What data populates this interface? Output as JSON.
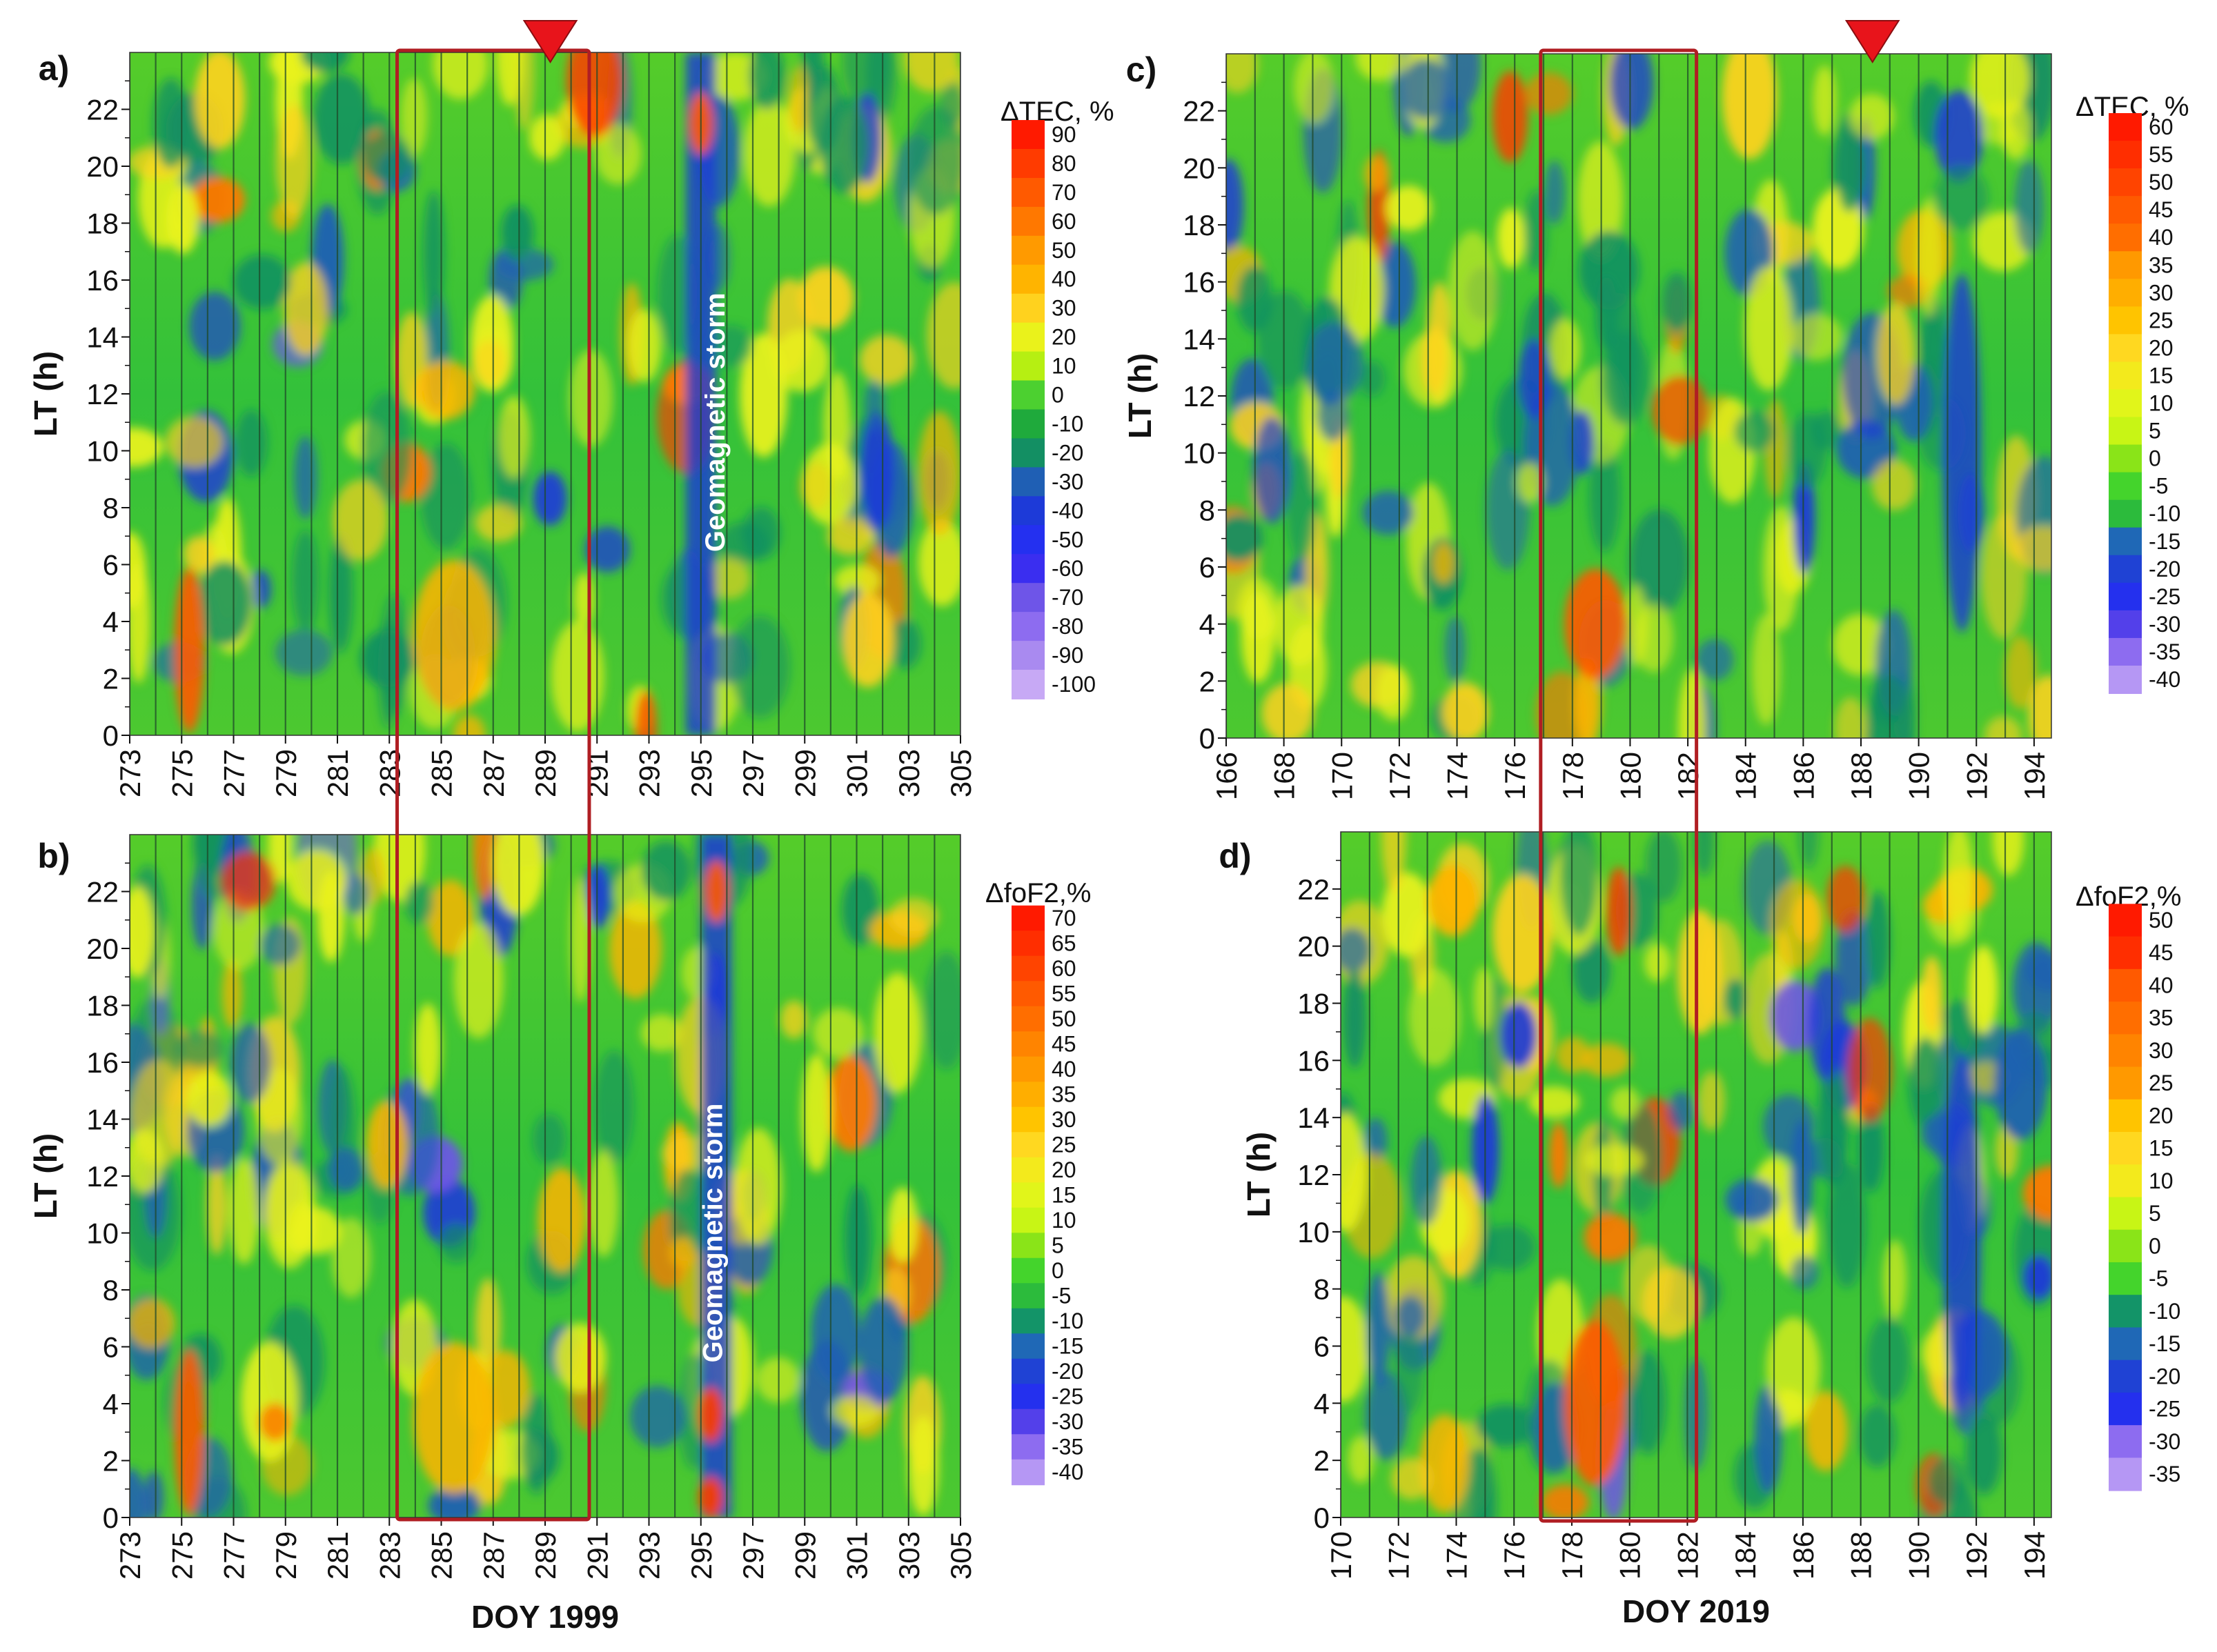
{
  "chart_data": [
    {
      "type": "heatmap",
      "panel_label": "a)",
      "quantity": "ΔTEC",
      "colorbar_title": "ΔTEC, %",
      "colorbar_levels": [
        "90",
        "80",
        "70",
        "60",
        "50",
        "40",
        "30",
        "20",
        "10",
        "0",
        "-10",
        "-20",
        "-30",
        "-40",
        "-50",
        "-60",
        "-70",
        "-80",
        "-90",
        "-100"
      ],
      "xlabel": "",
      "ylabel": "LT (h)",
      "xlim": [
        273,
        305
      ],
      "ylim": [
        0,
        24
      ],
      "x_ticks": [
        "273",
        "275",
        "277",
        "279",
        "281",
        "283",
        "285",
        "287",
        "289",
        "291",
        "293",
        "295",
        "297",
        "299",
        "301",
        "303",
        "305"
      ],
      "y_ticks": [
        "0",
        "2",
        "4",
        "6",
        "8",
        "10",
        "12",
        "14",
        "16",
        "18",
        "20",
        "22"
      ],
      "annotation": "Geomagnetic storm",
      "storm_doy": 295,
      "highlight_doy_range": [
        283.3,
        290.7
      ],
      "marker_doy": 289.2
    },
    {
      "type": "heatmap",
      "panel_label": "b)",
      "quantity": "ΔfoF2",
      "colorbar_title": "ΔfoF2,%",
      "colorbar_levels": [
        "70",
        "65",
        "60",
        "55",
        "50",
        "45",
        "40",
        "35",
        "30",
        "25",
        "20",
        "15",
        "10",
        "5",
        "0",
        "-5",
        "-10",
        "-15",
        "-20",
        "-25",
        "-30",
        "-35",
        "-40"
      ],
      "xlabel": "DOY 1999",
      "ylabel": "LT (h)",
      "xlim": [
        273,
        305
      ],
      "ylim": [
        0,
        24
      ],
      "x_ticks": [
        "273",
        "275",
        "277",
        "279",
        "281",
        "283",
        "285",
        "287",
        "289",
        "291",
        "293",
        "295",
        "297",
        "299",
        "301",
        "303",
        "305"
      ],
      "y_ticks": [
        "0",
        "2",
        "4",
        "6",
        "8",
        "10",
        "12",
        "14",
        "16",
        "18",
        "20",
        "22"
      ],
      "annotation": "Geomagnetic storm",
      "storm_doy": 295.6,
      "highlight_doy_range": [
        283.3,
        290.7
      ]
    },
    {
      "type": "heatmap",
      "panel_label": "c)",
      "quantity": "ΔTEC",
      "colorbar_title": "ΔTEC, %",
      "colorbar_levels": [
        "60",
        "55",
        "50",
        "45",
        "40",
        "35",
        "30",
        "25",
        "20",
        "15",
        "10",
        "5",
        "0",
        "-5",
        "-10",
        "-15",
        "-20",
        "-25",
        "-30",
        "-35",
        "-40"
      ],
      "xlabel": "",
      "ylabel": "LT (h)",
      "xlim": [
        166,
        194.6
      ],
      "ylim": [
        0,
        24
      ],
      "x_ticks": [
        "166",
        "168",
        "170",
        "172",
        "174",
        "176",
        "178",
        "180",
        "182",
        "184",
        "186",
        "188",
        "190",
        "192",
        "194"
      ],
      "y_ticks": [
        "0",
        "2",
        "4",
        "6",
        "8",
        "10",
        "12",
        "14",
        "16",
        "18",
        "20",
        "22"
      ],
      "highlight_doy_range": [
        176.9,
        182.3
      ],
      "marker_doy": 188.4
    },
    {
      "type": "heatmap",
      "panel_label": "d)",
      "quantity": "ΔfoF2",
      "colorbar_title": "ΔfoF2,%",
      "colorbar_levels": [
        "50",
        "45",
        "40",
        "35",
        "30",
        "25",
        "20",
        "15",
        "10",
        "5",
        "0",
        "-5",
        "-10",
        "-15",
        "-20",
        "-25",
        "-30",
        "-35"
      ],
      "xlabel": "DOY 2019",
      "ylabel": "LT (h)",
      "xlim": [
        170,
        194.6
      ],
      "ylim": [
        0,
        24
      ],
      "x_ticks": [
        "170",
        "172",
        "174",
        "176",
        "178",
        "180",
        "182",
        "184",
        "186",
        "188",
        "190",
        "192",
        "194"
      ],
      "y_ticks": [
        "0",
        "2",
        "4",
        "6",
        "8",
        "10",
        "12",
        "14",
        "16",
        "18",
        "20",
        "22"
      ],
      "highlight_doy_range": [
        176.9,
        182.3
      ]
    }
  ],
  "colors": {
    "highlight_box": "#b01e23",
    "marker": "#e8141b",
    "day_lines": "#1f4a2a"
  }
}
